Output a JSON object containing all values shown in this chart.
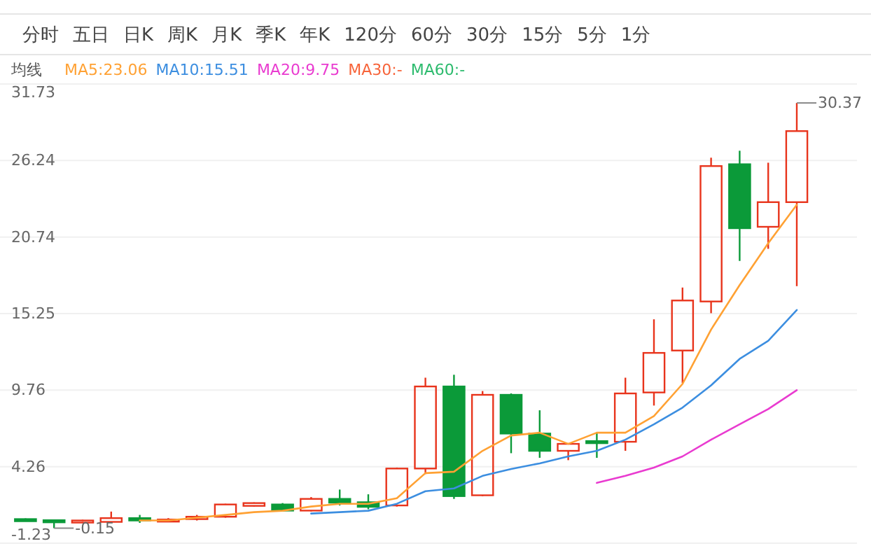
{
  "chart_data": {
    "type": "candlestick",
    "annotations": [
      "分时",
      "五日",
      "日K",
      "周K",
      "月K",
      "季K",
      "年K",
      "120分",
      "60分",
      "30分",
      "15分",
      "5分",
      "1分",
      "30.37",
      "-0.15"
    ],
    "legend_title": "均线",
    "legend": "top left",
    "categories": [
      null,
      null,
      null,
      null,
      null,
      null,
      null,
      null,
      null,
      null,
      null,
      null,
      null,
      null,
      null,
      null,
      null,
      null,
      null,
      null,
      null,
      null,
      null,
      null,
      null,
      null,
      null,
      null
    ],
    "ohlc": [
      [
        0.5,
        0.55,
        0.35,
        0.4
      ],
      [
        0.42,
        0.45,
        -0.15,
        0.33
      ],
      [
        0.3,
        0.45,
        0.25,
        0.4
      ],
      [
        0.3,
        1.04,
        0.25,
        0.57
      ],
      [
        0.57,
        0.8,
        0.23,
        0.4
      ],
      [
        0.33,
        0.57,
        0.3,
        0.47
      ],
      [
        0.5,
        0.8,
        0.4,
        0.67
      ],
      [
        0.67,
        1.6,
        0.6,
        1.55
      ],
      [
        1.45,
        1.7,
        1.4,
        1.65
      ],
      [
        1.55,
        1.65,
        1.05,
        1.11
      ],
      [
        1.11,
        2.08,
        1.05,
        1.95
      ],
      [
        1.95,
        2.62,
        1.48,
        1.68
      ],
      [
        1.71,
        2.28,
        1.21,
        1.38
      ],
      [
        1.48,
        4.2,
        1.4,
        4.13
      ],
      [
        4.13,
        10.65,
        3.73,
        10.02
      ],
      [
        10.02,
        10.86,
        1.95,
        2.15
      ],
      [
        2.21,
        9.69,
        2.15,
        9.42
      ],
      [
        9.42,
        9.52,
        5.23,
        6.64
      ],
      [
        6.64,
        8.31,
        4.9,
        5.4
      ],
      [
        5.4,
        5.95,
        4.73,
        5.9
      ],
      [
        6.1,
        6.74,
        4.9,
        6.05
      ],
      [
        6.05,
        10.65,
        5.4,
        9.52
      ],
      [
        9.59,
        14.84,
        8.65,
        12.43
      ],
      [
        12.6,
        17.12,
        10.26,
        16.19
      ],
      [
        16.12,
        26.44,
        15.28,
        25.84
      ],
      [
        25.97,
        26.94,
        19.03,
        21.38
      ],
      [
        21.48,
        26.08,
        19.9,
        23.25
      ],
      [
        23.25,
        30.37,
        17.22,
        28.35
      ]
    ],
    "colors": [
      "#0b9a39",
      "#0b9a39",
      "#e8341c",
      "#e8341c",
      "#0b9a39",
      "#e8341c",
      "#e8341c",
      "#e8341c",
      "#e8341c",
      "#0b9a39",
      "#e8341c",
      "#0b9a39",
      "#0b9a39",
      "#e8341c",
      "#e8341c",
      "#0b9a39",
      "#e8341c",
      "#0b9a39",
      "#0b9a39",
      "#e8341c",
      "#0b9a39",
      "#e8341c",
      "#e8341c",
      "#e8341c",
      "#e8341c",
      "#0b9a39",
      "#e8341c",
      "#e8341c"
    ],
    "series": [
      {
        "name": "MA5:23.06",
        "type": "line",
        "color": "#ffa133",
        "values": [
          null,
          null,
          null,
          null,
          0.4,
          0.4,
          0.6,
          0.8,
          1.0,
          1.1,
          1.4,
          1.6,
          1.6,
          2.0,
          3.8,
          3.9,
          5.4,
          6.5,
          6.7,
          5.9,
          6.7,
          6.7,
          7.9,
          10.2,
          14.1,
          17.3,
          20.3,
          23.06
        ]
      },
      {
        "name": "MA10:15.51",
        "type": "line",
        "color": "#3c8ee0",
        "values": [
          null,
          null,
          null,
          null,
          null,
          null,
          null,
          null,
          null,
          null,
          0.9,
          1.0,
          1.1,
          1.6,
          2.5,
          2.7,
          3.6,
          4.1,
          4.5,
          5.0,
          5.4,
          6.2,
          7.3,
          8.5,
          10.1,
          12.0,
          13.3,
          15.51
        ]
      },
      {
        "name": "MA20:9.75",
        "type": "line",
        "color": "#e93bd0",
        "values": [
          null,
          null,
          null,
          null,
          null,
          null,
          null,
          null,
          null,
          null,
          null,
          null,
          null,
          null,
          null,
          null,
          null,
          null,
          null,
          null,
          3.1,
          3.6,
          4.2,
          5.0,
          6.2,
          7.3,
          8.4,
          9.75
        ]
      },
      {
        "name": "MA30:-",
        "type": "line",
        "color": "#f7643a",
        "values": [
          null,
          null,
          null,
          null,
          null,
          null,
          null,
          null,
          null,
          null,
          null,
          null,
          null,
          null,
          null,
          null,
          null,
          null,
          null,
          null,
          null,
          null,
          null,
          null,
          null,
          null,
          null,
          null
        ]
      },
      {
        "name": "MA60:-",
        "type": "line",
        "color": "#2dbb6e",
        "values": [
          null,
          null,
          null,
          null,
          null,
          null,
          null,
          null,
          null,
          null,
          null,
          null,
          null,
          null,
          null,
          null,
          null,
          null,
          null,
          null,
          null,
          null,
          null,
          null,
          null,
          null,
          null,
          null
        ]
      }
    ],
    "ylim": [
      -1.23,
      31.73
    ],
    "yticks": [
      31.73,
      26.24,
      20.74,
      15.25,
      9.76,
      4.26,
      -1.23
    ],
    "grid": "y"
  }
}
